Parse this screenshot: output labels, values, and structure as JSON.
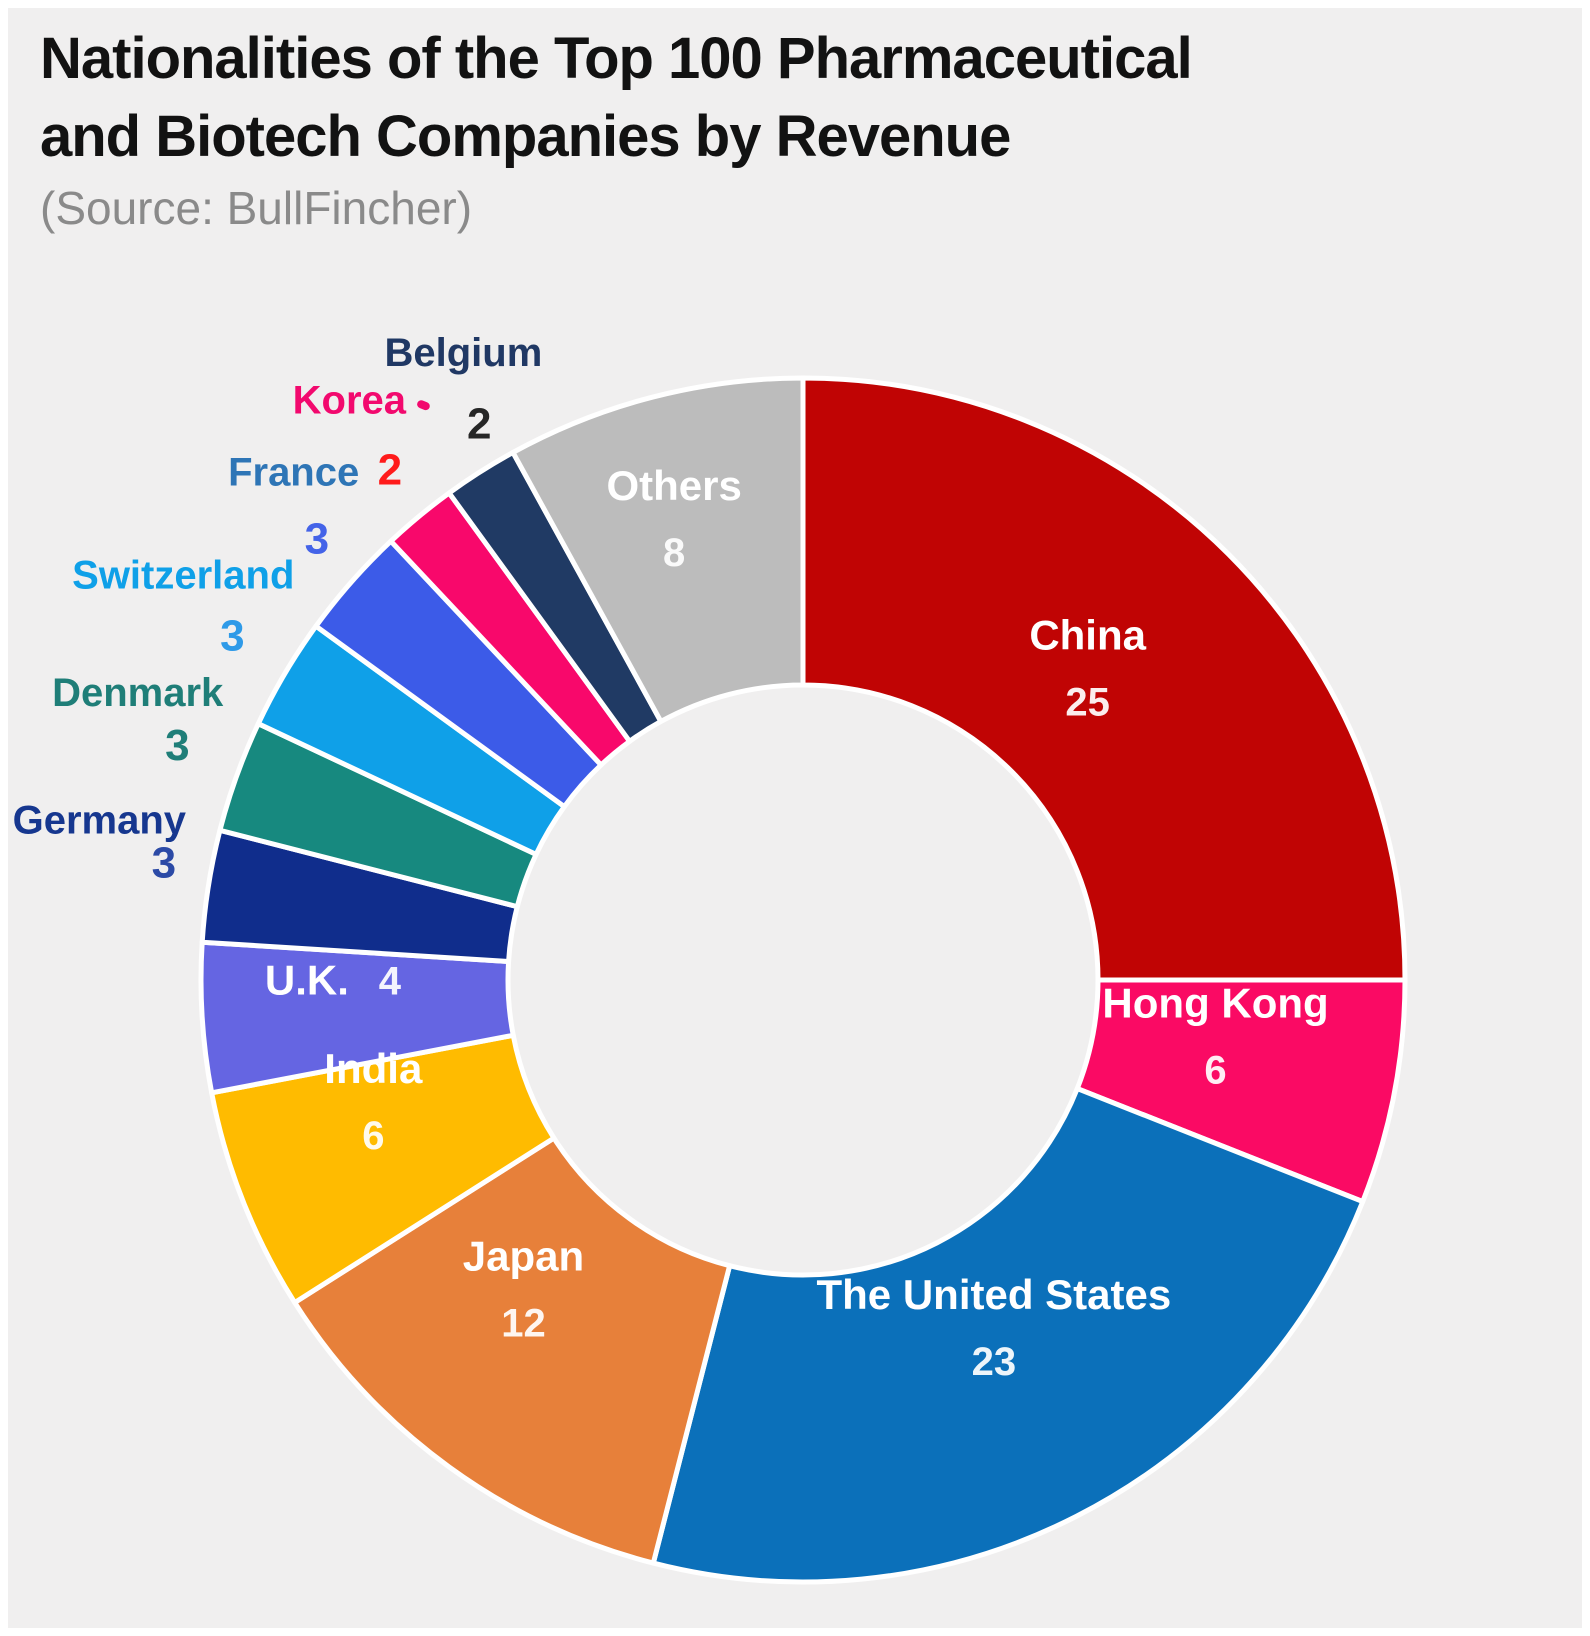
{
  "header": {
    "title_line1": "Nationalities of the Top 100 Pharmaceutical",
    "title_line2": "and Biotech Companies by Revenue",
    "source": "(Source: BullFincher)"
  },
  "chart_data": {
    "type": "pie",
    "subtype": "donut",
    "title": "Nationalities of the Top 100 Pharmaceutical and Biotech Companies by Revenue",
    "source": "(Source: BullFincher)",
    "total": 100,
    "start_angle_deg": 0,
    "direction": "clockwise",
    "hole_ratio": 0.49,
    "background_color": "#F0EFEF",
    "separator_color": "#FFFFFF",
    "inside_text_color": "#FFFFFF",
    "legend_position": "none",
    "segments": [
      {
        "label": "China",
        "value": 25,
        "color": "#C00404",
        "text_position": "inside"
      },
      {
        "label": "Hong Kong",
        "value": 6,
        "color": "#FA0A64",
        "text_position": "inside"
      },
      {
        "label": "The United States",
        "value": 23,
        "color": "#0B70BA",
        "text_position": "inside"
      },
      {
        "label": "Japan",
        "value": 12,
        "color": "#E7803A",
        "text_position": "inside"
      },
      {
        "label": "India",
        "value": 6,
        "color": "#FFBB00",
        "text_position": "inside"
      },
      {
        "label": "U.K.",
        "value": 4,
        "color": "#6565E2",
        "text_position": "inside-row"
      },
      {
        "label": "Germany",
        "value": 3,
        "color": "#102D8C",
        "text_position": "outside",
        "label_color": "#16378F",
        "value_color": "#2C4AA6"
      },
      {
        "label": "Denmark",
        "value": 3,
        "color": "#17897F",
        "text_position": "outside",
        "label_color": "#1F7E78",
        "value_color": "#1F7E78"
      },
      {
        "label": "Switzerland",
        "value": 3,
        "color": "#0FA0E8",
        "text_position": "outside",
        "label_color": "#0FA0E8",
        "value_color": "#2E9AE8"
      },
      {
        "label": "France",
        "value": 3,
        "color": "#3C5BE8",
        "text_position": "outside",
        "label_color": "#2E75B6",
        "value_color": "#4463E8"
      },
      {
        "label": "Korea",
        "value": 2,
        "color": "#F8086B",
        "text_position": "outside",
        "label_color": "#F2096E",
        "value_color": "#FF1B1B"
      },
      {
        "label": "Belgium",
        "value": 2,
        "color": "#203A64",
        "text_position": "outside",
        "label_color": "#203864",
        "value_color": "#262626"
      },
      {
        "label": "Others",
        "value": 8,
        "color": "#BCBCBC",
        "text_position": "inside"
      }
    ]
  }
}
